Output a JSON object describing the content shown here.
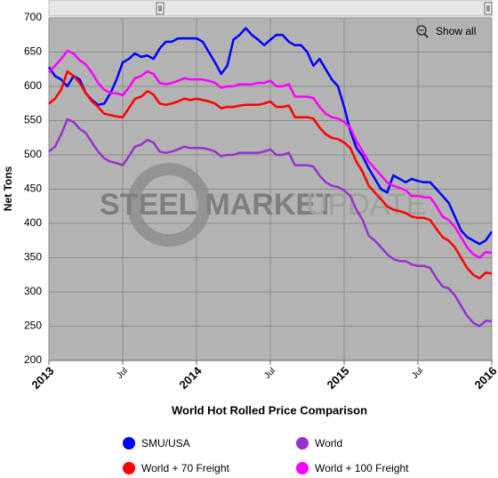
{
  "chart_data": {
    "type": "line",
    "y_label": "Net Tons",
    "x_label": "World Hot Rolled Price Comparison",
    "button": "Show all",
    "watermark_bold": "STEEL MARKET",
    "watermark_light": "UPDATE",
    "x": [
      0,
      0.5,
      1,
      1.5,
      2,
      2.5,
      3,
      3.5,
      4,
      4.5,
      5,
      5.5,
      6,
      6.5,
      7,
      7.5,
      8,
      8.5,
      9,
      9.5,
      10,
      10.5,
      11,
      11.5,
      12,
      12.5,
      13,
      13.5,
      14,
      14.5,
      15,
      15.5,
      16,
      16.5,
      17,
      17.5,
      18,
      18.5,
      19,
      19.5,
      20,
      20.5,
      21,
      21.5,
      22,
      22.5,
      23,
      23.5,
      24,
      24.5,
      25,
      25.5,
      26,
      26.5,
      27,
      27.5,
      28,
      28.5,
      29,
      29.5,
      30,
      30.5,
      31,
      31.5,
      32,
      32.5,
      33,
      33.5,
      34,
      34.5,
      35,
      35.5,
      36
    ],
    "xlim": [
      0,
      36
    ],
    "xticks": [
      {
        "value": 0,
        "label": "2013"
      },
      {
        "value": 6,
        "label": "Jul"
      },
      {
        "value": 12,
        "label": "2014"
      },
      {
        "value": 18,
        "label": "Jul"
      },
      {
        "value": 24,
        "label": "2015"
      },
      {
        "value": 30,
        "label": "Jul"
      },
      {
        "value": 36,
        "label": "2016"
      }
    ],
    "ylim": [
      200,
      700
    ],
    "yticks": [
      200,
      250,
      300,
      350,
      400,
      450,
      500,
      550,
      600,
      650,
      700
    ],
    "grid": true,
    "series": [
      {
        "name": "SMU/USA",
        "color": "#0000ff",
        "values": [
          628,
          615,
          610,
          600,
          615,
          610,
          590,
          580,
          573,
          575,
          590,
          610,
          635,
          640,
          648,
          643,
          645,
          640,
          655,
          665,
          665,
          670,
          670,
          670,
          670,
          665,
          650,
          635,
          618,
          630,
          668,
          675,
          685,
          675,
          668,
          660,
          668,
          675,
          675,
          665,
          660,
          660,
          650,
          630,
          640,
          625,
          610,
          600,
          570,
          535,
          510,
          498,
          480,
          465,
          450,
          445,
          470,
          465,
          460,
          465,
          462,
          460,
          460,
          450,
          440,
          430,
          410,
          390,
          380,
          375,
          370,
          375,
          388
        ]
      },
      {
        "name": "World",
        "color": "#9932cc",
        "values": [
          505,
          512,
          530,
          552,
          548,
          538,
          532,
          518,
          505,
          495,
          490,
          488,
          485,
          498,
          512,
          515,
          522,
          518,
          505,
          503,
          505,
          508,
          512,
          510,
          510,
          510,
          508,
          505,
          498,
          500,
          500,
          503,
          503,
          503,
          503,
          505,
          508,
          500,
          500,
          503,
          485,
          485,
          485,
          483,
          470,
          460,
          455,
          453,
          448,
          440,
          420,
          405,
          382,
          375,
          365,
          355,
          348,
          345,
          345,
          340,
          338,
          338,
          335,
          320,
          308,
          305,
          295,
          280,
          265,
          255,
          250,
          258,
          257
        ]
      },
      {
        "name": "World + 70 Freight",
        "color": "#ff0000",
        "values": [
          575,
          582,
          595,
          622,
          615,
          605,
          590,
          578,
          570,
          560,
          558,
          556,
          555,
          568,
          582,
          585,
          593,
          588,
          575,
          573,
          575,
          578,
          582,
          580,
          582,
          580,
          578,
          575,
          568,
          570,
          570,
          572,
          573,
          573,
          573,
          575,
          578,
          570,
          570,
          572,
          555,
          555,
          555,
          553,
          540,
          530,
          525,
          523,
          518,
          510,
          490,
          475,
          455,
          445,
          435,
          425,
          420,
          418,
          415,
          410,
          408,
          408,
          405,
          392,
          380,
          375,
          365,
          350,
          335,
          325,
          320,
          328,
          327
        ]
      },
      {
        "name": "World + 100 Freight",
        "color": "#ff00ff",
        "values": [
          620,
          630,
          640,
          652,
          648,
          638,
          632,
          620,
          605,
          595,
          590,
          590,
          587,
          598,
          612,
          615,
          622,
          618,
          605,
          603,
          605,
          608,
          612,
          610,
          610,
          610,
          608,
          605,
          598,
          600,
          600,
          603,
          603,
          603,
          605,
          605,
          608,
          600,
          600,
          603,
          585,
          585,
          585,
          583,
          570,
          560,
          555,
          553,
          548,
          540,
          520,
          505,
          490,
          480,
          470,
          460,
          455,
          452,
          448,
          440,
          440,
          438,
          438,
          425,
          410,
          405,
          395,
          380,
          365,
          355,
          350,
          358,
          357
        ]
      }
    ]
  }
}
